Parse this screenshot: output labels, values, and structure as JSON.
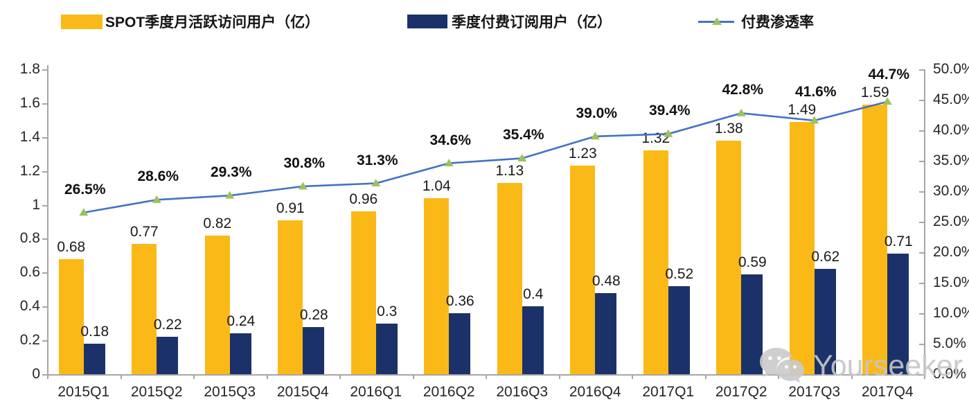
{
  "legend": {
    "items": [
      {
        "label": "SPOT季度月活跃访问用户（亿）",
        "swatch": "bar",
        "color": "#FBB917"
      },
      {
        "label": "季度付费订阅用户（亿）",
        "swatch": "bar",
        "color": "#1B3169"
      },
      {
        "label": "付费渗透率",
        "swatch": "line",
        "color": "#4472C4",
        "marker_color": "#9CC25E"
      }
    ]
  },
  "chart_data": {
    "type": "combo-bar-line",
    "categories": [
      "2015Q1",
      "2015Q2",
      "2015Q3",
      "2015Q4",
      "2016Q1",
      "2016Q2",
      "2016Q3",
      "2016Q4",
      "2017Q1",
      "2017Q2",
      "2017Q3",
      "2017Q4"
    ],
    "series": [
      {
        "name": "SPOT季度月活跃访问用户（亿）",
        "type": "bar",
        "axis": "left",
        "color": "#FBB917",
        "values": [
          0.68,
          0.77,
          0.82,
          0.91,
          0.96,
          1.04,
          1.13,
          1.23,
          1.32,
          1.38,
          1.49,
          1.59
        ],
        "labels": [
          "0.68",
          "0.77",
          "0.82",
          "0.91",
          "0.96",
          "1.04",
          "1.13",
          "1.23",
          "1.32",
          "1.38",
          "1.49",
          "1.59"
        ]
      },
      {
        "name": "季度付费订阅用户（亿）",
        "type": "bar",
        "axis": "left",
        "color": "#1B3169",
        "values": [
          0.18,
          0.22,
          0.24,
          0.28,
          0.3,
          0.36,
          0.4,
          0.48,
          0.52,
          0.59,
          0.62,
          0.71
        ],
        "labels": [
          "0.18",
          "0.22",
          "0.24",
          "0.28",
          "0.3",
          "0.36",
          "0.4",
          "0.48",
          "0.52",
          "0.59",
          "0.62",
          "0.71"
        ]
      },
      {
        "name": "付费渗透率",
        "type": "line",
        "axis": "right",
        "color": "#4472C4",
        "marker": "triangle",
        "marker_color": "#9CC25E",
        "values": [
          26.5,
          28.6,
          29.3,
          30.8,
          31.3,
          34.6,
          35.4,
          39.0,
          39.4,
          42.8,
          41.6,
          44.7
        ],
        "labels": [
          "26.5%",
          "28.6%",
          "29.3%",
          "30.8%",
          "31.3%",
          "34.6%",
          "35.4%",
          "39.0%",
          "39.4%",
          "42.8%",
          "41.6%",
          "44.7%"
        ]
      }
    ],
    "left_axis": {
      "min": 0,
      "max": 1.8,
      "ticks": [
        "1.8",
        "1.6",
        "1.4",
        "1.2",
        "1",
        "0.8",
        "0.6",
        "0.4",
        "0.2",
        "0"
      ]
    },
    "right_axis": {
      "min": 0,
      "max": 50,
      "ticks": [
        "50.0%",
        "45.0%",
        "40.0%",
        "35.0%",
        "30.0%",
        "25.0%",
        "20.0%",
        "15.0%",
        "10.0%",
        "5.0%",
        "0.0%"
      ]
    },
    "grid": false,
    "legend_position": "top",
    "title": ""
  },
  "watermark": {
    "text": "Yourseeker",
    "icon": "wechat-icon"
  }
}
